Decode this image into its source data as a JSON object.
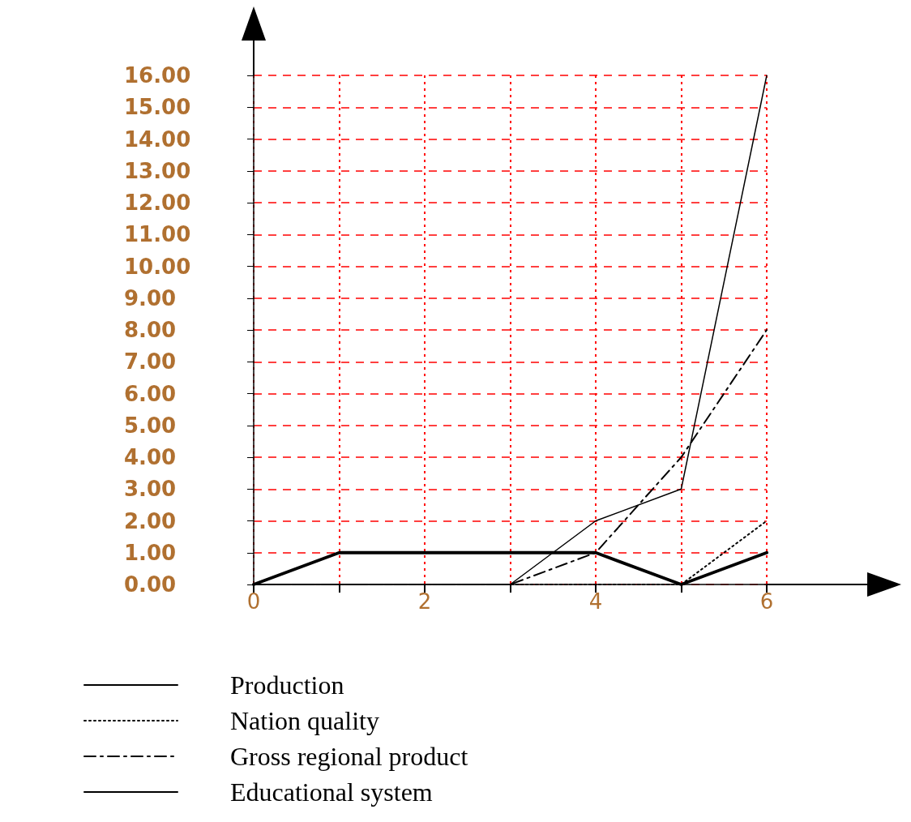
{
  "chart_data": {
    "type": "line",
    "x": [
      0,
      1,
      2,
      3,
      4,
      5,
      6
    ],
    "series": [
      {
        "name": "Production",
        "color": "#000000",
        "line_style": "solid",
        "values": [
          0,
          0,
          0,
          0,
          2,
          3,
          16
        ]
      },
      {
        "name": "Nation quality",
        "color": "#000000",
        "line_style": "dotted",
        "values": [
          0,
          0,
          0,
          0,
          0,
          0,
          2
        ]
      },
      {
        "name": "Gross regional product",
        "color": "#000000",
        "line_style": "dashed",
        "values": [
          0,
          0,
          0,
          0,
          1,
          4,
          8
        ]
      },
      {
        "name": "Educational system",
        "color": "#000000",
        "line_style": "solid",
        "values": [
          0,
          1,
          1,
          1,
          1,
          0,
          1
        ]
      }
    ],
    "xlim": [
      0,
      6
    ],
    "xticks": [
      0,
      {
        "value": 1,
        "label": null
      },
      2,
      {
        "value": 3,
        "label": null
      },
      4,
      {
        "value": 5,
        "label": null
      },
      6
    ],
    "ylim": [
      0,
      16
    ],
    "yticks": [
      {
        "value": 0,
        "label": "0.00"
      },
      {
        "value": 1,
        "label": "1.00"
      },
      {
        "value": 2,
        "label": "2.00"
      },
      {
        "value": 3,
        "label": "3.00"
      },
      {
        "value": 4,
        "label": "4.00"
      },
      {
        "value": 5,
        "label": "5.00"
      },
      {
        "value": 6,
        "label": "6.00"
      },
      {
        "value": 7,
        "label": "7.00"
      },
      {
        "value": 8,
        "label": "8.00"
      },
      {
        "value": 9,
        "label": "9.00"
      },
      {
        "value": 10,
        "label": "10.00"
      },
      {
        "value": 11,
        "label": "11.00"
      },
      {
        "value": 12,
        "label": "12.00"
      },
      {
        "value": 13,
        "label": "13.00"
      },
      {
        "value": 14,
        "label": "14.00"
      },
      {
        "value": 15,
        "label": "15.00"
      },
      {
        "value": 16,
        "label": "16.00"
      }
    ],
    "grid": true,
    "legend": "bottom left",
    "marker": "none"
  }
}
